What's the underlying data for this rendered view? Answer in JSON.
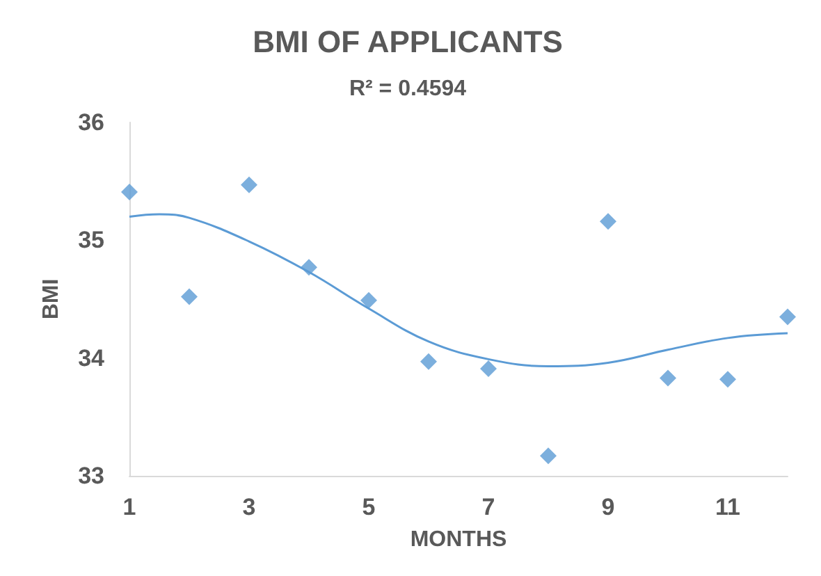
{
  "chart_data": {
    "type": "scatter",
    "title": "BMI OF APPLICANTS",
    "xlabel": "MONTHS",
    "ylabel": "BMI",
    "annotations": [
      "R² = 0.4594"
    ],
    "xlim": [
      1,
      12
    ],
    "xticks": [
      1,
      3,
      5,
      7,
      9,
      11
    ],
    "ylim": [
      33,
      36
    ],
    "yticks": [
      33,
      34,
      35,
      36
    ],
    "grid": false,
    "marker": "diamond",
    "series": [
      {
        "color": "#5b9bd5",
        "x": [
          1,
          2,
          3,
          4,
          5,
          6,
          7,
          8,
          9,
          10,
          11,
          12
        ],
        "values": [
          35.41,
          34.52,
          35.47,
          34.77,
          34.49,
          33.97,
          33.91,
          33.17,
          35.16,
          33.83,
          33.82,
          34.35
        ]
      },
      {
        "type": "line",
        "color": "#5b9bd5",
        "marker": "none",
        "line_style": "solid",
        "x": [
          1,
          1.5,
          2,
          3,
          4,
          5,
          6,
          7,
          8,
          9,
          10,
          11,
          12
        ],
        "values": [
          35.2,
          35.22,
          35.19,
          34.99,
          34.73,
          34.42,
          34.14,
          33.99,
          33.93,
          33.96,
          34.07,
          34.17,
          34.21
        ]
      }
    ]
  }
}
